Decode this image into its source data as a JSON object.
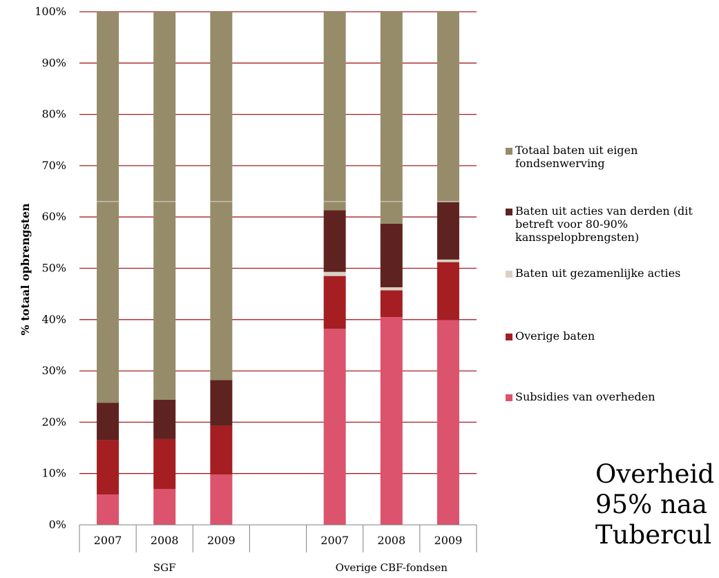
{
  "chart_data": {
    "type": "bar",
    "stacked": true,
    "ylabel": "% totaal opbrengsten",
    "ylim": [
      0,
      100
    ],
    "yticks": [
      "0%",
      "10%",
      "20%",
      "30%",
      "40%",
      "50%",
      "60%",
      "70%",
      "80%",
      "90%",
      "100%"
    ],
    "grid": true,
    "legend_position": "right",
    "groups": [
      {
        "label": "SGF",
        "categories": [
          "2007",
          "2008",
          "2009"
        ]
      },
      {
        "label": "Overige CBF-fondsen",
        "categories": [
          "2007",
          "2008",
          "2009"
        ]
      }
    ],
    "categories": [
      "2007",
      "2008",
      "2009",
      "",
      "2007",
      "2008",
      "2009"
    ],
    "series": [
      {
        "name": "Subsidies van overheden",
        "color": "#db536c",
        "values": [
          5.9,
          7.0,
          9.8,
          null,
          38.2,
          40.5,
          39.9
        ]
      },
      {
        "name": "Overige baten",
        "color": "#a41e22",
        "values": [
          10.6,
          9.7,
          9.5,
          null,
          10.3,
          5.2,
          11.3
        ]
      },
      {
        "name": "Baten uit gezamenlijke acties",
        "color": "#d9d1c4",
        "values": [
          0,
          0,
          0,
          null,
          0.8,
          0.6,
          0.5
        ]
      },
      {
        "name": "Baten uit acties van derden (dit betreft voor 80-90% kansspelopbrengsten)",
        "color": "#5e2320",
        "values": [
          7.3,
          7.7,
          8.9,
          null,
          12.0,
          12.4,
          11.2
        ]
      },
      {
        "name": "Totaal baten uit eigen fondsenwerving",
        "color": "#968c6a",
        "values": [
          76.2,
          75.6,
          71.8,
          null,
          38.7,
          41.3,
          37.1
        ]
      }
    ]
  },
  "legend": [
    {
      "label": "Totaal baten uit eigen fondsenwerving",
      "color": "#968c6a",
      "icon": "square"
    },
    {
      "label": "Baten uit acties van derden (dit betreft voor 80-90% kansspelopbrengsten)",
      "color": "#5e2320",
      "icon": "square"
    },
    {
      "label": "Baten uit gezamenlijke acties",
      "color": "#d9d1c4",
      "icon": "square"
    },
    {
      "label": "Overige baten",
      "color": "#a41e22",
      "icon": "square"
    },
    {
      "label": "Subsidies van overheden",
      "color": "#db536c",
      "icon": "square"
    }
  ],
  "overlay_text": [
    "Overheid",
    "95% naa",
    "Tubercul"
  ],
  "colors": {
    "gridline": "#a41e22",
    "axis": "#7f7f7f"
  }
}
